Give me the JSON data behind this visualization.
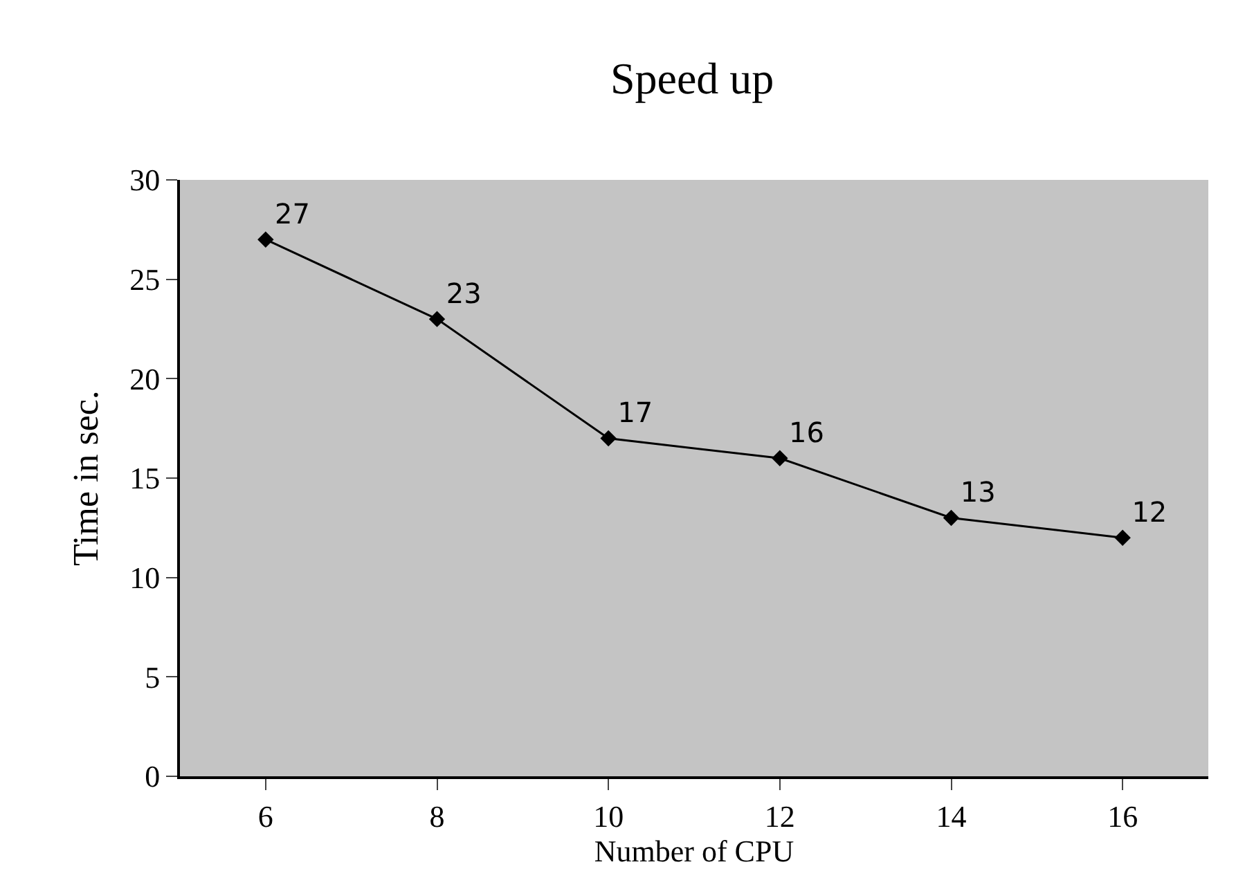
{
  "chart_data": {
    "type": "line",
    "title": "Speed up",
    "xlabel": "Number of CPU",
    "ylabel": "Time in sec.",
    "categories": [
      "6",
      "8",
      "10",
      "12",
      "14",
      "16"
    ],
    "series": [
      {
        "color": "#000000",
        "values": [
          27,
          23,
          17,
          16,
          13,
          12
        ]
      }
    ],
    "ylim": [
      0,
      30
    ],
    "yticks": [
      0,
      5,
      10,
      15,
      20,
      25,
      30
    ],
    "data_labels": true,
    "marker": "diamond",
    "line_style": "solid"
  }
}
